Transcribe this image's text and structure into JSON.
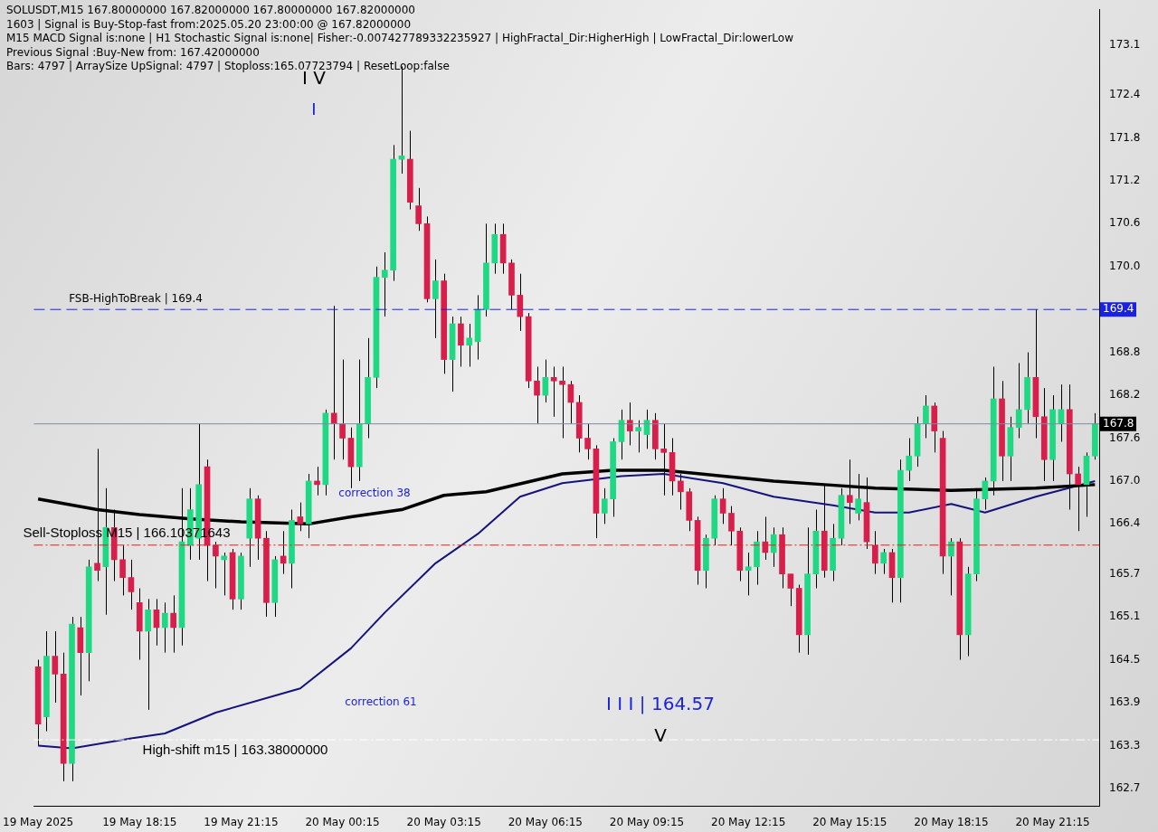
{
  "chart_data": {
    "type": "candlestick",
    "categories": [
      "19 May 2025",
      null,
      null,
      null,
      null,
      null,
      null,
      null,
      null,
      null,
      null,
      null,
      "19 May 18:15",
      null,
      null,
      null,
      null,
      null,
      null,
      null,
      null,
      null,
      null,
      null,
      "19 May 21:15",
      null,
      null,
      null,
      null,
      null,
      null,
      null,
      null,
      null,
      null,
      null,
      "20 May 00:15",
      null,
      null,
      null,
      null,
      null,
      null,
      null,
      null,
      null,
      null,
      null,
      "20 May 03:15",
      null,
      null,
      null,
      null,
      null,
      null,
      null,
      null,
      null,
      null,
      null,
      "20 May 06:15",
      null,
      null,
      null,
      null,
      null,
      null,
      null,
      null,
      null,
      null,
      null,
      "20 May 09:15",
      null,
      null,
      null,
      null,
      null,
      null,
      null,
      null,
      null,
      null,
      null,
      "20 May 12:15",
      null,
      null,
      null,
      null,
      null,
      null,
      null,
      null,
      null,
      null,
      null,
      "20 May 15:15",
      null,
      null,
      null,
      null,
      null,
      null,
      null,
      null,
      null,
      null,
      null,
      "20 May 18:15",
      null,
      null,
      null,
      null,
      null,
      null,
      null,
      null,
      null,
      null,
      null,
      "20 May 21:15",
      null,
      null,
      null,
      null,
      null
    ],
    "ohlc": [
      [
        164.4,
        164.5,
        163.3,
        163.6
      ],
      [
        163.7,
        164.9,
        163.5,
        164.55
      ],
      [
        164.55,
        164.9,
        163.9,
        164.3
      ],
      [
        164.3,
        164.6,
        162.8,
        163.05
      ],
      [
        163.05,
        165.1,
        162.8,
        165.0
      ],
      [
        164.95,
        165.1,
        164.0,
        164.6
      ],
      [
        164.6,
        165.9,
        164.2,
        165.8
      ],
      [
        165.85,
        167.45,
        165.6,
        165.75
      ],
      [
        165.8,
        166.9,
        165.13,
        166.35
      ],
      [
        166.35,
        166.6,
        165.6,
        165.9
      ],
      [
        165.9,
        166.1,
        165.4,
        165.65
      ],
      [
        165.65,
        165.9,
        165.2,
        165.45
      ],
      [
        165.3,
        165.5,
        164.5,
        164.9
      ],
      [
        164.9,
        165.35,
        163.8,
        165.2
      ],
      [
        165.2,
        165.35,
        164.7,
        164.95
      ],
      [
        164.95,
        165.3,
        164.6,
        165.15
      ],
      [
        165.15,
        165.4,
        164.6,
        164.95
      ],
      [
        164.95,
        166.9,
        164.7,
        166.15
      ],
      [
        166.1,
        166.9,
        165.9,
        166.6
      ],
      [
        166.2,
        167.8,
        165.9,
        166.95
      ],
      [
        167.2,
        167.3,
        165.6,
        166.1
      ],
      [
        166.1,
        166.15,
        165.5,
        165.95
      ],
      [
        165.9,
        166.0,
        165.4,
        165.95
      ],
      [
        166.0,
        166.05,
        165.2,
        165.35
      ],
      [
        165.35,
        166.0,
        165.2,
        165.95
      ],
      [
        166.2,
        166.9,
        165.8,
        166.75
      ],
      [
        166.75,
        166.8,
        165.9,
        166.2
      ],
      [
        166.2,
        166.3,
        165.1,
        165.3
      ],
      [
        165.3,
        165.95,
        165.1,
        165.9
      ],
      [
        165.95,
        166.3,
        165.7,
        165.85
      ],
      [
        165.85,
        166.6,
        165.5,
        166.45
      ],
      [
        166.5,
        166.7,
        166.3,
        166.4
      ],
      [
        166.4,
        167.1,
        166.2,
        167.0
      ],
      [
        167.0,
        167.2,
        166.8,
        166.95
      ],
      [
        166.95,
        168.0,
        166.8,
        167.95
      ],
      [
        167.95,
        169.45,
        167.3,
        167.8
      ],
      [
        167.8,
        168.7,
        167.3,
        167.6
      ],
      [
        167.6,
        167.75,
        166.9,
        167.2
      ],
      [
        167.2,
        168.7,
        167.0,
        167.8
      ],
      [
        167.8,
        169.0,
        167.6,
        168.45
      ],
      [
        168.45,
        170.0,
        168.3,
        169.85
      ],
      [
        169.85,
        170.2,
        169.3,
        169.95
      ],
      [
        169.95,
        171.7,
        169.8,
        171.5
      ],
      [
        171.5,
        172.8,
        171.3,
        171.55
      ],
      [
        171.5,
        171.9,
        170.8,
        170.9
      ],
      [
        170.85,
        171.1,
        170.5,
        170.6
      ],
      [
        170.6,
        170.7,
        169.5,
        169.55
      ],
      [
        169.55,
        170.1,
        169.0,
        169.8
      ],
      [
        169.8,
        169.9,
        168.5,
        168.7
      ],
      [
        168.7,
        169.3,
        168.25,
        169.2
      ],
      [
        169.2,
        169.3,
        168.6,
        168.9
      ],
      [
        168.9,
        169.2,
        168.6,
        169.0
      ],
      [
        168.95,
        169.6,
        168.7,
        169.4
      ],
      [
        169.4,
        170.6,
        169.3,
        170.05
      ],
      [
        170.05,
        170.6,
        169.9,
        170.45
      ],
      [
        170.45,
        170.6,
        169.9,
        170.05
      ],
      [
        170.05,
        170.1,
        169.4,
        169.6
      ],
      [
        169.6,
        169.9,
        169.1,
        169.3
      ],
      [
        169.3,
        169.35,
        168.3,
        168.4
      ],
      [
        168.4,
        168.6,
        167.8,
        168.2
      ],
      [
        168.2,
        168.7,
        168.1,
        168.45
      ],
      [
        168.45,
        168.6,
        167.9,
        168.4
      ],
      [
        168.4,
        168.6,
        167.6,
        168.35
      ],
      [
        168.35,
        168.4,
        167.8,
        168.1
      ],
      [
        168.1,
        168.2,
        167.4,
        167.6
      ],
      [
        167.6,
        167.8,
        167.3,
        167.45
      ],
      [
        167.45,
        167.5,
        166.2,
        166.55
      ],
      [
        166.55,
        166.9,
        166.4,
        166.75
      ],
      [
        166.75,
        167.6,
        166.5,
        167.55
      ],
      [
        167.55,
        168.0,
        167.3,
        167.85
      ],
      [
        167.85,
        168.1,
        167.5,
        167.7
      ],
      [
        167.7,
        167.85,
        167.4,
        167.75
      ],
      [
        167.65,
        168.0,
        167.45,
        167.85
      ],
      [
        167.85,
        167.95,
        167.3,
        167.45
      ],
      [
        167.45,
        167.8,
        166.8,
        167.4
      ],
      [
        167.4,
        167.6,
        166.8,
        167.0
      ],
      [
        167.0,
        167.1,
        166.6,
        166.85
      ],
      [
        166.85,
        166.9,
        166.3,
        166.45
      ],
      [
        166.45,
        166.5,
        165.55,
        165.75
      ],
      [
        165.75,
        166.25,
        165.5,
        166.2
      ],
      [
        166.2,
        166.8,
        166.1,
        166.75
      ],
      [
        166.75,
        166.9,
        166.4,
        166.55
      ],
      [
        166.55,
        166.65,
        166.1,
        166.3
      ],
      [
        166.3,
        166.35,
        165.6,
        165.75
      ],
      [
        165.75,
        166.0,
        165.4,
        165.8
      ],
      [
        165.8,
        166.3,
        165.55,
        166.15
      ],
      [
        166.15,
        166.5,
        165.9,
        166.0
      ],
      [
        166.0,
        166.35,
        165.8,
        166.25
      ],
      [
        166.25,
        166.35,
        165.5,
        165.7
      ],
      [
        165.7,
        165.7,
        165.25,
        165.5
      ],
      [
        165.5,
        165.55,
        164.6,
        164.85
      ],
      [
        164.85,
        166.35,
        164.57,
        165.7
      ],
      [
        165.7,
        166.6,
        165.5,
        166.3
      ],
      [
        166.3,
        166.95,
        165.65,
        165.75
      ],
      [
        165.75,
        166.4,
        165.6,
        166.2
      ],
      [
        166.2,
        166.9,
        166.1,
        166.8
      ],
      [
        166.8,
        167.3,
        166.4,
        166.7
      ],
      [
        166.55,
        167.1,
        166.45,
        166.75
      ],
      [
        166.7,
        167.05,
        166.05,
        166.15
      ],
      [
        166.1,
        166.3,
        165.7,
        165.85
      ],
      [
        165.85,
        166.05,
        165.7,
        166.0
      ],
      [
        166.0,
        166.05,
        165.3,
        165.65
      ],
      [
        165.65,
        167.3,
        165.3,
        167.15
      ],
      [
        167.15,
        167.6,
        167.0,
        167.35
      ],
      [
        167.35,
        167.9,
        167.2,
        167.8
      ],
      [
        167.8,
        168.2,
        167.6,
        168.05
      ],
      [
        168.05,
        168.1,
        167.4,
        167.7
      ],
      [
        167.6,
        167.7,
        165.7,
        165.95
      ],
      [
        165.95,
        166.2,
        165.4,
        166.15
      ],
      [
        166.15,
        166.2,
        164.5,
        164.85
      ],
      [
        164.85,
        165.8,
        164.55,
        165.7
      ],
      [
        165.7,
        166.9,
        165.6,
        166.75
      ],
      [
        166.75,
        167.05,
        166.6,
        167.0
      ],
      [
        167.0,
        168.6,
        166.8,
        168.15
      ],
      [
        168.15,
        168.4,
        167.0,
        167.35
      ],
      [
        167.35,
        167.9,
        167.0,
        167.75
      ],
      [
        167.75,
        168.65,
        167.6,
        168.0
      ],
      [
        168.0,
        168.8,
        167.8,
        168.45
      ],
      [
        168.45,
        169.4,
        167.6,
        167.9
      ],
      [
        167.9,
        168.3,
        167.0,
        167.3
      ],
      [
        167.3,
        168.2,
        167.0,
        168.0
      ],
      [
        167.8,
        168.35,
        167.55,
        168.0
      ],
      [
        168.0,
        168.35,
        166.6,
        167.1
      ],
      [
        167.1,
        167.2,
        166.3,
        166.95
      ],
      [
        166.95,
        167.4,
        166.5,
        167.35
      ],
      [
        167.35,
        167.95,
        167.3,
        167.8
      ]
    ],
    "colors": [
      "#d81e4a",
      "#1ed883",
      "#d81e4a",
      "#d81e4a",
      "#1ed883",
      "#d81e4a",
      "#1ed883",
      "#d81e4a",
      "#1ed883",
      "#d81e4a",
      "#d81e4a",
      "#d81e4a",
      "#d81e4a",
      "#1ed883",
      "#d81e4a",
      "#1ed883",
      "#d81e4a",
      "#1ed883",
      "#1ed883",
      "#1ed883",
      "#d81e4a",
      "#d81e4a",
      "#1ed883",
      "#d81e4a",
      "#1ed883",
      "#1ed883",
      "#d81e4a",
      "#d81e4a",
      "#1ed883",
      "#d81e4a",
      "#1ed883",
      "#d81e4a",
      "#1ed883",
      "#d81e4a",
      "#1ed883",
      "#d81e4a",
      "#d81e4a",
      "#d81e4a",
      "#1ed883",
      "#1ed883",
      "#1ed883",
      "#1ed883",
      "#1ed883",
      "#1ed883",
      "#d81e4a",
      "#d81e4a",
      "#d81e4a",
      "#1ed883",
      "#d81e4a",
      "#1ed883",
      "#d81e4a",
      "#1ed883",
      "#1ed883",
      "#1ed883",
      "#1ed883",
      "#d81e4a",
      "#d81e4a",
      "#d81e4a",
      "#d81e4a",
      "#d81e4a",
      "#1ed883",
      "#d81e4a",
      "#d81e4a",
      "#d81e4a",
      "#d81e4a",
      "#d81e4a",
      "#d81e4a",
      "#1ed883",
      "#1ed883",
      "#1ed883",
      "#d81e4a",
      "#1ed883",
      "#1ed883",
      "#d81e4a",
      "#d81e4a",
      "#d81e4a",
      "#d81e4a",
      "#d81e4a",
      "#d81e4a",
      "#1ed883",
      "#1ed883",
      "#d81e4a",
      "#d81e4a",
      "#d81e4a",
      "#1ed883",
      "#1ed883",
      "#d81e4a",
      "#1ed883",
      "#d81e4a",
      "#d81e4a",
      "#d81e4a",
      "#1ed883",
      "#1ed883",
      "#d81e4a",
      "#1ed883",
      "#1ed883",
      "#d81e4a",
      "#1ed883",
      "#d81e4a",
      "#d81e4a",
      "#1ed883",
      "#d81e4a",
      "#1ed883",
      "#1ed883",
      "#1ed883",
      "#1ed883",
      "#d81e4a",
      "#d81e4a",
      "#1ed883",
      "#d81e4a",
      "#1ed883",
      "#1ed883",
      "#1ed883",
      "#1ed883",
      "#d81e4a",
      "#1ed883",
      "#1ed883",
      "#1ed883",
      "#d81e4a",
      "#d81e4a",
      "#1ed883",
      "#1ed883",
      "#d81e4a",
      "#d81e4a",
      "#1ed883",
      "#1ed883"
    ],
    "series": [
      {
        "type": "line",
        "color": "#000000",
        "values": [
          166.75,
          null,
          null,
          null,
          null,
          null,
          null,
          166.6,
          null,
          null,
          null,
          null,
          166.53,
          null,
          null,
          null,
          null,
          null,
          166.47,
          null,
          null,
          null,
          null,
          null,
          166.43,
          null,
          null,
          null,
          null,
          null,
          null,
          null,
          166.4,
          null,
          null,
          null,
          null,
          166.5,
          null,
          null,
          null,
          null,
          null,
          166.6,
          null,
          null,
          null,
          null,
          166.8,
          null,
          null,
          null,
          null,
          166.85,
          null,
          null,
          null,
          null,
          null,
          null,
          null,
          null,
          167.1,
          null,
          null,
          null,
          null,
          null,
          167.15,
          null,
          null,
          null,
          null,
          null,
          167.15,
          null,
          null,
          null,
          null,
          null,
          null,
          167.07,
          null,
          null,
          null,
          null,
          null,
          167.0,
          null,
          null,
          null,
          null,
          null,
          166.95,
          null,
          null,
          null,
          null,
          null,
          166.9,
          null,
          null,
          null,
          null,
          null,
          null,
          null,
          null,
          166.87,
          null,
          null,
          null,
          null,
          null,
          null,
          null,
          null,
          null,
          166.9,
          null,
          null,
          null,
          null,
          null,
          null,
          166.95
        ]
      },
      {
        "type": "line",
        "color": "#14147a",
        "values": [
          163.3,
          null,
          null,
          null,
          163.26,
          null,
          null,
          null,
          null,
          null,
          null,
          163.4,
          null,
          null,
          null,
          163.47,
          null,
          null,
          null,
          null,
          null,
          163.76,
          null,
          null,
          null,
          null,
          null,
          null,
          null,
          null,
          null,
          164.1,
          null,
          null,
          null,
          null,
          null,
          164.66,
          null,
          null,
          null,
          165.16,
          null,
          null,
          null,
          null,
          null,
          165.85,
          null,
          null,
          null,
          null,
          166.26,
          null,
          null,
          null,
          null,
          166.78,
          null,
          null,
          null,
          null,
          166.97,
          null,
          null,
          null,
          null,
          null,
          null,
          167.07,
          null,
          null,
          null,
          null,
          167.1,
          null,
          null,
          null,
          null,
          null,
          null,
          166.97,
          null,
          null,
          null,
          null,
          null,
          166.78,
          null,
          null,
          null,
          null,
          null,
          null,
          166.66,
          null,
          null,
          null,
          null,
          166.56,
          null,
          null,
          null,
          166.56,
          null,
          null,
          null,
          null,
          166.68,
          null,
          null,
          null,
          166.56,
          null,
          null,
          null,
          null,
          null,
          166.78,
          null,
          null,
          null,
          null,
          null,
          null,
          167.0
        ]
      }
    ],
    "ylim": [
      162.45,
      173.6
    ],
    "yticks": [
      162.7,
      163.3,
      163.9,
      164.5,
      165.1,
      165.7,
      166.4,
      {
        "value": 167,
        "label": "167.0"
      },
      167.6,
      168.2,
      168.8,
      {
        "value": 170,
        "label": "170.0"
      },
      170.6,
      171.2,
      171.8,
      172.4,
      173.1
    ],
    "ref_lines": [
      {
        "axis": "y",
        "value": 169.4,
        "label": "FSB-HighToBreak | 169.4",
        "color": "#1a22e0",
        "line_style": "dashed"
      },
      {
        "axis": "y",
        "value": 167.8,
        "label": null,
        "color": "#7c8da0",
        "line_style": "solid"
      },
      {
        "axis": "y",
        "value": 166.10371643,
        "label": "Sell-Stoploss M15 | 166.10371643",
        "color": "#e02020",
        "line_style": "dotted"
      },
      {
        "axis": "y",
        "value": 163.38,
        "label": "High-shift m15 | 163.38000000",
        "color": "#ffffff",
        "line_style": "dotted"
      }
    ],
    "annotations": [
      "SOLUSDT,M15  167.80000000 167.82000000 167.80000000 167.82000000",
      "1603 | Signal is Buy-Stop-fast from:2025.05.20 23:00:00 @ 167.82000000",
      "M15 MACD Signal is:none | H1 Stochastic Signal is:none| Fisher:-0.007427789332235927 | HighFractal_Dir:HigherHigh | LowFractal_Dir:lowerLow",
      "Previous Signal :Buy-New from: 167.42000000",
      "Bars: 4797 | ArraySize UpSignal: 4797 | Stoploss:165.07723794 | ResetLoop:false",
      "I V",
      "I",
      "correction 38",
      "correction 61",
      "I I I | 164.57",
      "V",
      {
        "text": "169.4",
        "y": 169.4
      },
      {
        "text": "167.8",
        "y": 167.8
      }
    ]
  }
}
